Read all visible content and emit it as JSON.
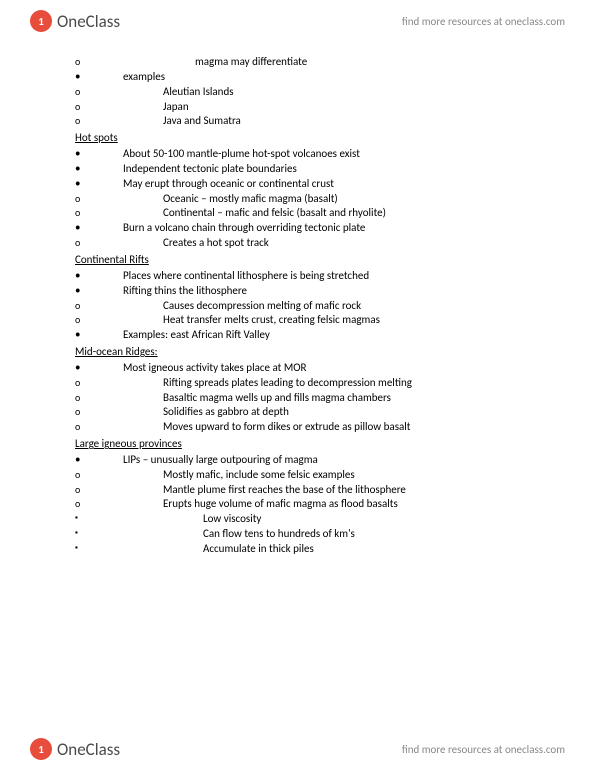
{
  "brand": {
    "logo_letter": "1",
    "logo_text": "OneClass",
    "tagline": "find more resources at oneclass.com"
  },
  "doc": {
    "intro_items": [
      "magma may differentiate"
    ],
    "examples_label": "examples",
    "examples": [
      "Aleutian Islands",
      "Japan",
      "Java and Sumatra"
    ],
    "sections": [
      {
        "title": "Hot spots",
        "items": [
          {
            "text": "About 50-100 mantle-plume hot-spot volcanoes exist",
            "sub": []
          },
          {
            "text": "Independent tectonic plate boundaries",
            "sub": []
          },
          {
            "text": "May erupt through oceanic or continental crust",
            "sub": [
              "Oceanic – mostly mafic magma (basalt)",
              "Continental – mafic and felsic (basalt and rhyolite)"
            ]
          },
          {
            "text": "Burn a volcano chain through overriding tectonic plate",
            "sub": [
              "Creates a hot spot track"
            ]
          }
        ]
      },
      {
        "title": "Continental Rifts",
        "items": [
          {
            "text": "Places where continental lithosphere is being stretched",
            "sub": []
          },
          {
            "text": "Rifting thins the lithosphere",
            "sub": [
              "Causes decompression melting of mafic rock",
              "Heat transfer melts crust, creating felsic magmas"
            ]
          },
          {
            "text": "Examples: east African Rift Valley",
            "sub": []
          }
        ]
      },
      {
        "title": "Mid-ocean Ridges:",
        "items": [
          {
            "text": "Most igneous activity takes place at MOR",
            "sub": [
              "Rifting spreads plates leading to decompression melting",
              "Basaltic magma wells up and fills magma chambers",
              "Solidifies as gabbro at depth",
              "Moves upward to form dikes or extrude as pillow basalt"
            ]
          }
        ]
      },
      {
        "title": "Large igneous provinces",
        "items": [
          {
            "text": "LIPs – unusually large outpouring of magma",
            "sub": [
              "Mostly mafic, include some felsic examples",
              "Mantle plume first reaches the base of the lithosphere"
            ],
            "special_sub": {
              "text": "Erupts huge volume of mafic magma as flood basalts",
              "subsub": [
                "Low viscosity",
                "Can flow tens to hundreds of km's",
                "Accumulate in thick piles"
              ]
            }
          }
        ]
      }
    ]
  }
}
